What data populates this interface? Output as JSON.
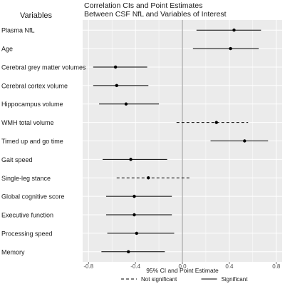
{
  "chart_data": {
    "type": "forest",
    "title": "Correlation CIs and Point Estimates",
    "subtitle": "Between CSF NfL and Variables of Interest",
    "ylabel": "Variables",
    "xlabel": "95% CI and Point Estimate",
    "xlim": [
      -0.85,
      0.85
    ],
    "xticks": [
      -0.8,
      -0.4,
      0.0,
      0.4,
      0.8
    ],
    "xtick_labels": [
      "-0.8",
      "-0.4",
      "0.0",
      "0.4",
      "0.8"
    ],
    "reference_line": 0,
    "grid": true,
    "legend_position": "bottom",
    "legend": [
      {
        "label": "Not significant",
        "style": "dashed"
      },
      {
        "label": "Significant",
        "style": "solid"
      }
    ],
    "variables": [
      {
        "label": "Plasma NfL",
        "estimate": 0.44,
        "ci_low": 0.12,
        "ci_high": 0.67,
        "significant": true
      },
      {
        "label": "Age",
        "estimate": 0.41,
        "ci_low": 0.09,
        "ci_high": 0.65,
        "significant": true
      },
      {
        "label": "Cerebral grey matter volumes",
        "estimate": -0.57,
        "ci_low": -0.76,
        "ci_high": -0.3,
        "significant": true
      },
      {
        "label": "Cerebral cortex volume",
        "estimate": -0.56,
        "ci_low": -0.76,
        "ci_high": -0.29,
        "significant": true
      },
      {
        "label": "Hippocampus volume",
        "estimate": -0.48,
        "ci_low": -0.71,
        "ci_high": -0.2,
        "significant": true
      },
      {
        "label": "WMH total volume",
        "estimate": 0.29,
        "ci_low": -0.05,
        "ci_high": 0.56,
        "significant": false
      },
      {
        "label": "Timed up and go time",
        "estimate": 0.53,
        "ci_low": 0.24,
        "ci_high": 0.73,
        "significant": true
      },
      {
        "label": "Gait speed",
        "estimate": -0.44,
        "ci_low": -0.68,
        "ci_high": -0.13,
        "significant": true
      },
      {
        "label": "Single-leg stance",
        "estimate": -0.29,
        "ci_low": -0.56,
        "ci_high": 0.06,
        "significant": false
      },
      {
        "label": "Global cognitive score",
        "estimate": -0.41,
        "ci_low": -0.65,
        "ci_high": -0.09,
        "significant": true
      },
      {
        "label": "Executive function",
        "estimate": -0.41,
        "ci_low": -0.65,
        "ci_high": -0.09,
        "significant": true
      },
      {
        "label": "Processing speed",
        "estimate": -0.39,
        "ci_low": -0.64,
        "ci_high": -0.07,
        "significant": true
      },
      {
        "label": "Memory",
        "estimate": -0.46,
        "ci_low": -0.69,
        "ci_high": -0.15,
        "significant": true
      }
    ]
  },
  "colors": {
    "panel_background": "#ebebeb",
    "grid_line": "#ffffff",
    "reference_line": "#b5b5b5",
    "marks": "#000000",
    "text": "#1a1a1a",
    "axis_text": "#4d4d4d"
  }
}
